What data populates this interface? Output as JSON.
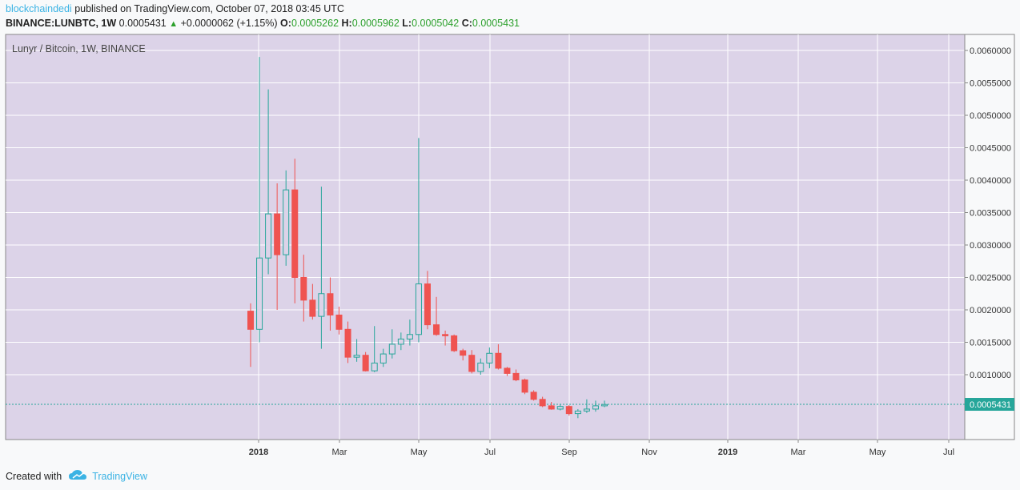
{
  "header": {
    "author": "blockchaindedi",
    "published": "published on TradingView.com, October 07, 2018 03:45 UTC"
  },
  "ohlc_line": {
    "symbol": "BINANCE:LUNBTC, 1W",
    "last": "0.0005431",
    "change": "+0.0000062 (+1.15%)",
    "o_label": "O:",
    "o": "0.0005262",
    "h_label": "H:",
    "h": "0.0005962",
    "l_label": "L:",
    "l": "0.0005042",
    "c_label": "C:",
    "c": "0.0005431"
  },
  "chart_title": "Lunyr / Bitcoin, 1W, BINANCE",
  "last_price_label": "0.0005431",
  "footer": {
    "created": "Created with",
    "brand": "TradingView"
  },
  "colors": {
    "up": "#26a69a",
    "down": "#ef5350",
    "background": "#dcd3e8",
    "grid": "#ffffff",
    "last_line": "#26a69a"
  },
  "chart_data": {
    "type": "candlestick",
    "x_labels": [
      "2018",
      "Mar",
      "May",
      "Jul",
      "Sep",
      "Nov",
      "2019",
      "Mar",
      "May",
      "Jul"
    ],
    "ylim": [
      0.0001,
      0.0063
    ],
    "y_ticks": [
      "0.0010000",
      "0.0015000",
      "0.0020000",
      "0.0025000",
      "0.0030000",
      "0.0035000",
      "0.0040000",
      "0.0045000",
      "0.0050000",
      "0.0055000",
      "0.0060000"
    ],
    "last_price": 0.0005431,
    "candles": [
      {
        "o": 0.00198,
        "h": 0.0021,
        "l": 0.00112,
        "c": 0.0017
      },
      {
        "o": 0.0017,
        "h": 0.0059,
        "l": 0.0015,
        "c": 0.0028
      },
      {
        "o": 0.0028,
        "h": 0.0054,
        "l": 0.00255,
        "c": 0.00348
      },
      {
        "o": 0.00348,
        "h": 0.00395,
        "l": 0.002,
        "c": 0.00285
      },
      {
        "o": 0.00285,
        "h": 0.00415,
        "l": 0.00268,
        "c": 0.00385
      },
      {
        "o": 0.00385,
        "h": 0.00433,
        "l": 0.0021,
        "c": 0.0025
      },
      {
        "o": 0.0025,
        "h": 0.00285,
        "l": 0.00182,
        "c": 0.00215
      },
      {
        "o": 0.00215,
        "h": 0.0024,
        "l": 0.00185,
        "c": 0.0019
      },
      {
        "o": 0.0019,
        "h": 0.0039,
        "l": 0.0014,
        "c": 0.00225
      },
      {
        "o": 0.00225,
        "h": 0.0025,
        "l": 0.00168,
        "c": 0.00192
      },
      {
        "o": 0.00192,
        "h": 0.00205,
        "l": 0.00162,
        "c": 0.0017
      },
      {
        "o": 0.0017,
        "h": 0.00182,
        "l": 0.00118,
        "c": 0.00127
      },
      {
        "o": 0.00127,
        "h": 0.00155,
        "l": 0.0012,
        "c": 0.0013
      },
      {
        "o": 0.0013,
        "h": 0.00135,
        "l": 0.00105,
        "c": 0.00106
      },
      {
        "o": 0.00106,
        "h": 0.00175,
        "l": 0.00104,
        "c": 0.00118
      },
      {
        "o": 0.00118,
        "h": 0.0014,
        "l": 0.00112,
        "c": 0.00132
      },
      {
        "o": 0.00132,
        "h": 0.0017,
        "l": 0.00125,
        "c": 0.00147
      },
      {
        "o": 0.00147,
        "h": 0.00165,
        "l": 0.00138,
        "c": 0.00155
      },
      {
        "o": 0.00155,
        "h": 0.00185,
        "l": 0.00145,
        "c": 0.00162
      },
      {
        "o": 0.00162,
        "h": 0.00465,
        "l": 0.0015,
        "c": 0.0024
      },
      {
        "o": 0.0024,
        "h": 0.0026,
        "l": 0.0017,
        "c": 0.00177
      },
      {
        "o": 0.00177,
        "h": 0.0022,
        "l": 0.0016,
        "c": 0.00162
      },
      {
        "o": 0.00162,
        "h": 0.00168,
        "l": 0.00145,
        "c": 0.0016
      },
      {
        "o": 0.0016,
        "h": 0.00162,
        "l": 0.00135,
        "c": 0.00137
      },
      {
        "o": 0.00137,
        "h": 0.0014,
        "l": 0.00122,
        "c": 0.0013
      },
      {
        "o": 0.0013,
        "h": 0.00138,
        "l": 0.00102,
        "c": 0.00105
      },
      {
        "o": 0.00105,
        "h": 0.00125,
        "l": 0.001,
        "c": 0.00118
      },
      {
        "o": 0.00118,
        "h": 0.00142,
        "l": 0.0011,
        "c": 0.00133
      },
      {
        "o": 0.00133,
        "h": 0.00147,
        "l": 0.00108,
        "c": 0.0011
      },
      {
        "o": 0.0011,
        "h": 0.00112,
        "l": 0.00098,
        "c": 0.00102
      },
      {
        "o": 0.00102,
        "h": 0.00108,
        "l": 0.0009,
        "c": 0.00092
      },
      {
        "o": 0.00092,
        "h": 0.00094,
        "l": 0.0007,
        "c": 0.00073
      },
      {
        "o": 0.00073,
        "h": 0.00076,
        "l": 0.0006,
        "c": 0.00062
      },
      {
        "o": 0.00062,
        "h": 0.00066,
        "l": 0.0005,
        "c": 0.00052
      },
      {
        "o": 0.00052,
        "h": 0.00058,
        "l": 0.00046,
        "c": 0.00047
      },
      {
        "o": 0.00047,
        "h": 0.00055,
        "l": 0.00045,
        "c": 0.00051
      },
      {
        "o": 0.00051,
        "h": 0.00053,
        "l": 0.00037,
        "c": 0.0004
      },
      {
        "o": 0.0004,
        "h": 0.00047,
        "l": 0.00033,
        "c": 0.00044
      },
      {
        "o": 0.00044,
        "h": 0.00062,
        "l": 0.00041,
        "c": 0.00047
      },
      {
        "o": 0.00047,
        "h": 0.0006,
        "l": 0.00043,
        "c": 0.00052
      },
      {
        "o": 0.00052,
        "h": 0.0006,
        "l": 0.0005,
        "c": 0.00054
      }
    ]
  }
}
